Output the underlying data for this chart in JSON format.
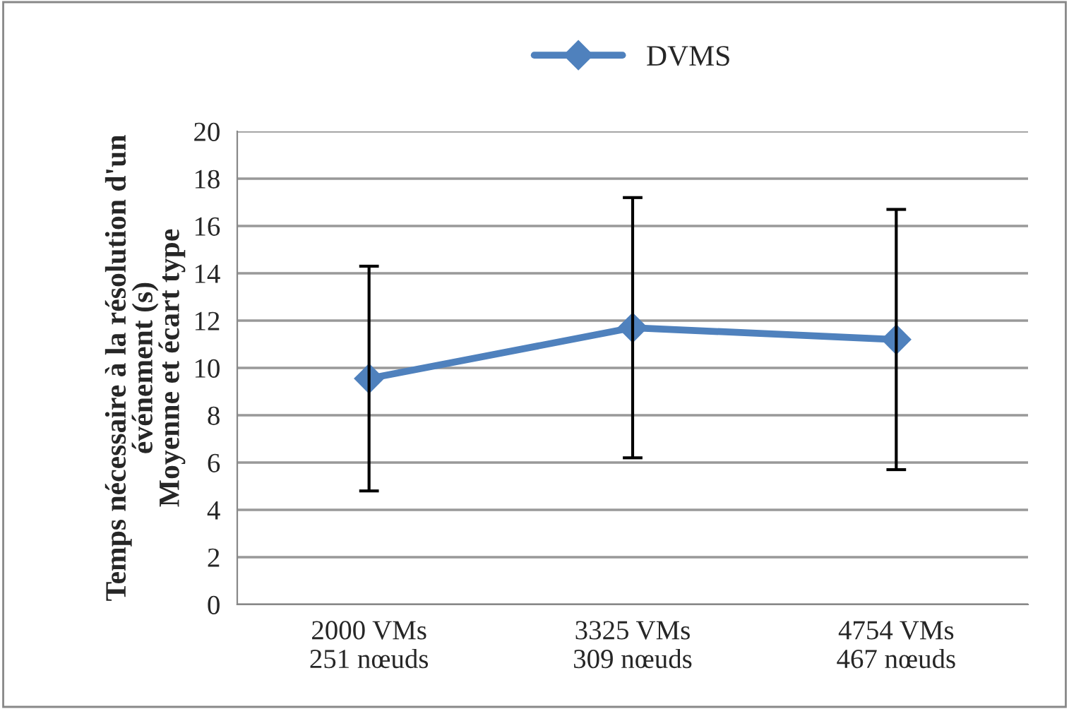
{
  "chart_data": {
    "type": "line",
    "ylabel": "Temps nécessaire à la résolution d'un\névénement (s)\nMoyenne et écart type",
    "categories": [
      "2000 VMs\n251 nœuds",
      "3325 VMs\n309 nœuds",
      "4754 VMs\n467 nœuds"
    ],
    "series": [
      {
        "name": "DVMS",
        "color": "#4f81bd",
        "values": [
          9.55,
          11.7,
          11.2
        ],
        "errors": [
          4.75,
          5.5,
          5.5
        ]
      }
    ],
    "ylim": [
      0,
      20
    ],
    "yticks": [
      0,
      2,
      4,
      6,
      8,
      10,
      12,
      14,
      16,
      18,
      20
    ],
    "grid": "y",
    "legend": "top",
    "marker": "diamond",
    "line_style": "solid"
  }
}
